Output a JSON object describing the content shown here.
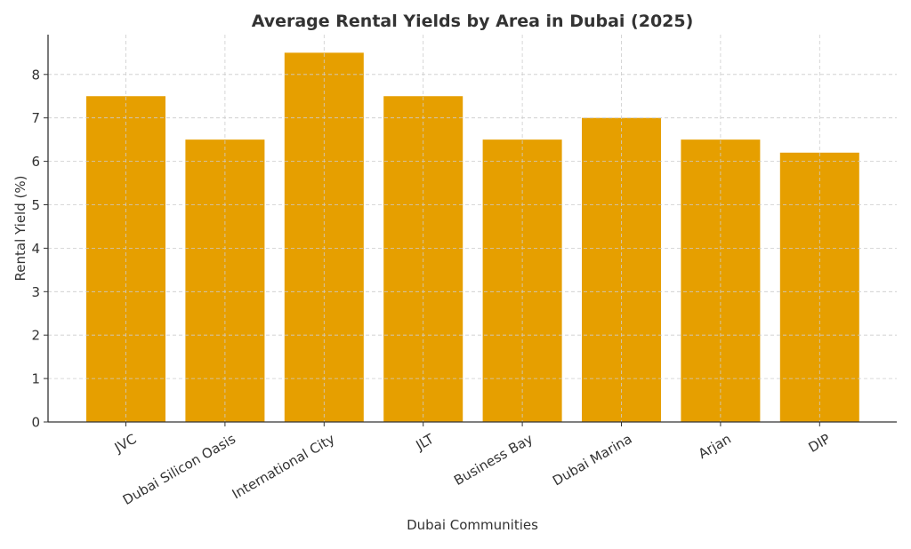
{
  "chart_data": {
    "type": "bar",
    "title": "Average Rental Yields by Area in Dubai (2025)",
    "xlabel": "Dubai Communities",
    "ylabel": "Rental Yield (%)",
    "categories": [
      "JVC",
      "Dubai Silicon Oasis",
      "International City",
      "JLT",
      "Business Bay",
      "Dubai Marina",
      "Arjan",
      "DIP"
    ],
    "values": [
      7.5,
      6.5,
      8.5,
      7.5,
      6.5,
      7.0,
      6.5,
      6.2
    ],
    "ylim": [
      0,
      8.9
    ],
    "yticks": [
      "0",
      "1",
      "2",
      "3",
      "4",
      "5",
      "6",
      "7",
      "8"
    ],
    "grid": true,
    "bar_color": "#E69F00"
  }
}
